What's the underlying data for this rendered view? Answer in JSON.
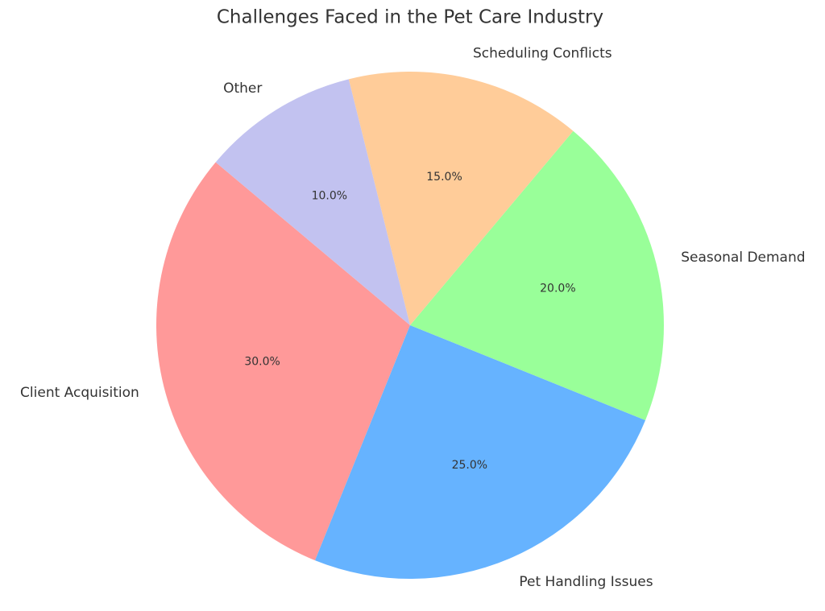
{
  "chart_data": {
    "type": "pie",
    "title": "Challenges Faced in the Pet Care Industry",
    "categories": [
      "Client Acquisition",
      "Pet Handling Issues",
      "Seasonal Demand",
      "Scheduling Conflicts",
      "Other"
    ],
    "values": [
      30,
      25,
      20,
      15,
      10
    ],
    "value_labels": [
      "30.0%",
      "25.0%",
      "20.0%",
      "15.0%",
      "10.0%"
    ],
    "colors": [
      "#ff9999",
      "#66b3ff",
      "#99ff99",
      "#ffcc99",
      "#c2c2f0"
    ]
  }
}
